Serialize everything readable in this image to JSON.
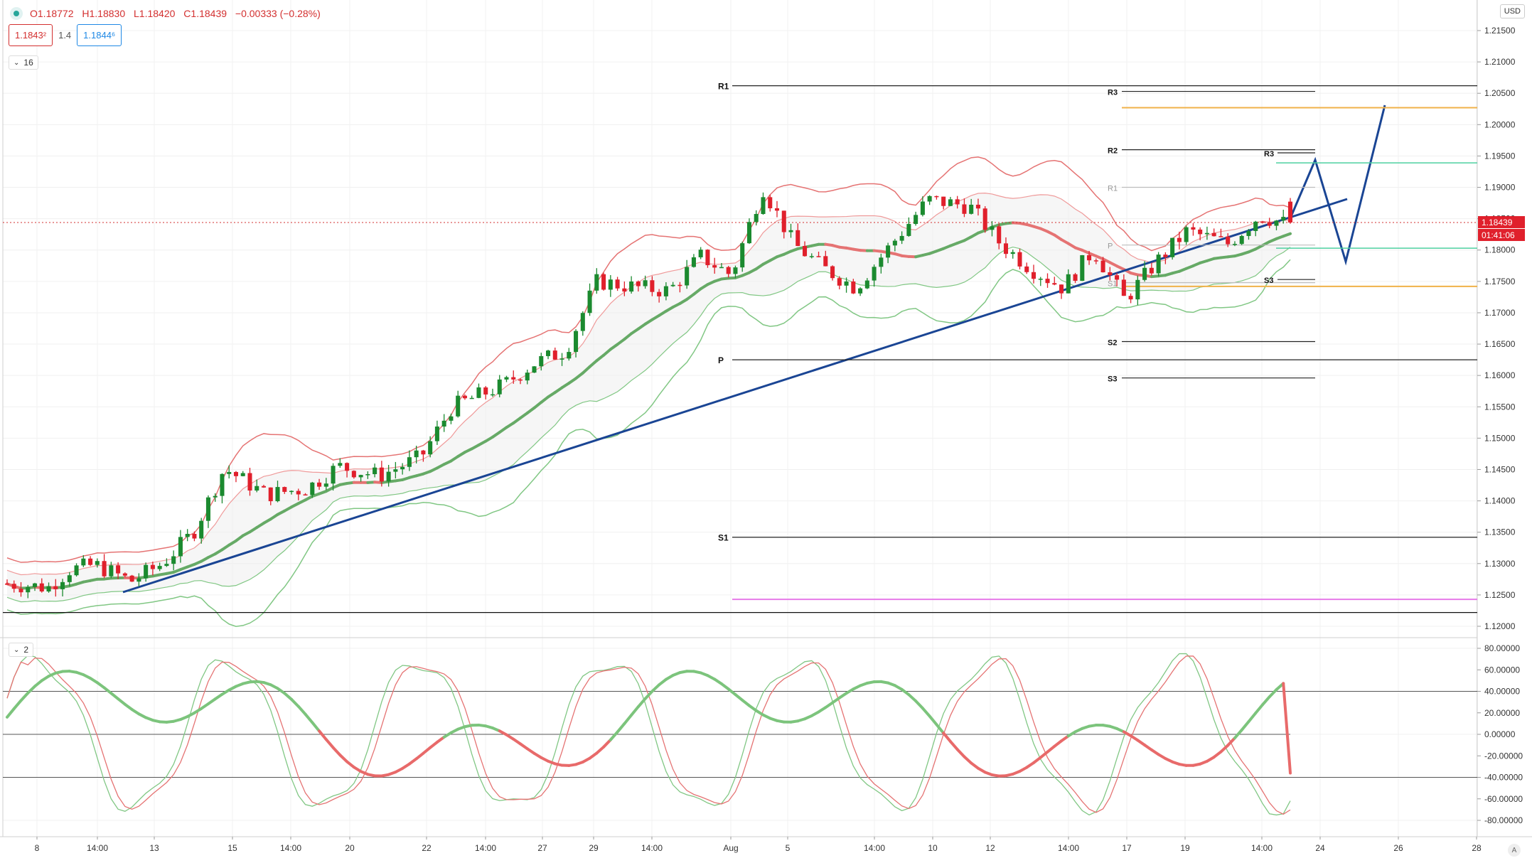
{
  "header": {
    "open": "O1.18772",
    "high": "H1.18830",
    "low": "L1.18420",
    "close": "C1.18439",
    "change": "−0.00333 (−0.28%)"
  },
  "quote": {
    "sell_price": "1.1843²",
    "spread": "1.4",
    "buy_price": "1.1844⁶"
  },
  "main_pane": {
    "collapse_label": "16",
    "currency": "USD",
    "last_price": "1.18439",
    "countdown": "01:41:06",
    "price_scale": [
      "1.21500",
      "1.21000",
      "1.20500",
      "1.20000",
      "1.19500",
      "1.19000",
      "1.18500",
      "1.18000",
      "1.17500",
      "1.17000",
      "1.16500",
      "1.16000",
      "1.15500",
      "1.15000",
      "1.14500",
      "1.14000",
      "1.13500",
      "1.13000",
      "1.12500",
      "1.12000"
    ]
  },
  "pivots": {
    "monthly": [
      {
        "label": "R1",
        "value": 1.2062
      },
      {
        "label": "P",
        "value": 1.1625
      },
      {
        "label": "S1",
        "value": 1.1342
      }
    ],
    "weekly": [
      {
        "label": "R3",
        "value": 1.2053
      },
      {
        "label": "R2",
        "value": 1.196
      },
      {
        "label": "R1",
        "value": 1.19
      },
      {
        "label": "P",
        "value": 1.1808
      },
      {
        "label": "S1",
        "value": 1.1748
      },
      {
        "label": "S2",
        "value": 1.1654
      },
      {
        "label": "S3",
        "value": 1.1596
      }
    ],
    "daily": [
      {
        "label": "R3",
        "value": 1.1955
      },
      {
        "label": "S3",
        "value": 1.1753
      }
    ]
  },
  "oscillator_pane": {
    "collapse_label": "2",
    "scale": [
      "80.00000",
      "60.00000",
      "40.00000",
      "20.00000",
      "0.00000",
      "-20.00000",
      "-40.00000",
      "-60.00000",
      "-80.00000"
    ]
  },
  "time_axis": [
    "8",
    "14:00",
    "13",
    "15",
    "14:00",
    "20",
    "22",
    "14:00",
    "27",
    "29",
    "14:00",
    "Aug",
    "5",
    "14:00",
    "10",
    "12",
    "14:00",
    "17",
    "19",
    "14:00",
    "24",
    "26",
    "28"
  ],
  "autoscale_label": "A",
  "colors": {
    "up": "#1b8a2f",
    "down": "#e0202c",
    "trend": "#1a4594",
    "band_red": "#e57373",
    "band_green": "#81c784",
    "ma_green": "#66aa66",
    "orange_level": "#f0b24a",
    "teal_level": "#4dd0a1",
    "violet_level": "#e67ae8"
  }
}
